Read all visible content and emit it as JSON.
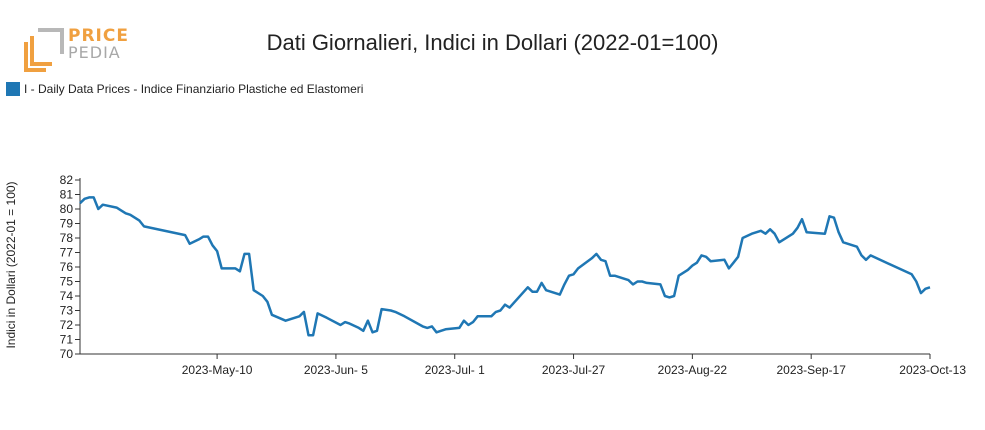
{
  "logo": {
    "word1": "PRICE",
    "word2": "PEDIA"
  },
  "chart_data": {
    "type": "line",
    "title": "Dati Giornalieri, Indici in Dollari (2022-01=100)",
    "xlabel": "",
    "ylabel": "Indici in Dollari (2022-01 = 100)",
    "ylim": [
      70,
      82
    ],
    "y_ticks": [
      70,
      71,
      72,
      73,
      74,
      75,
      76,
      77,
      78,
      79,
      80,
      81,
      82
    ],
    "x_range": [
      "2023-04-10",
      "2023-10-13"
    ],
    "x_ticks": [
      {
        "date": "2023-05-10",
        "label": "2023-May-10"
      },
      {
        "date": "2023-06-05",
        "label": "2023-Jun- 5"
      },
      {
        "date": "2023-07-01",
        "label": "2023-Jul- 1"
      },
      {
        "date": "2023-07-27",
        "label": "2023-Jul-27"
      },
      {
        "date": "2023-08-22",
        "label": "2023-Aug-22"
      },
      {
        "date": "2023-09-17",
        "label": "2023-Sep-17"
      },
      {
        "date": "2023-10-13",
        "label": "2023-Oct-13"
      }
    ],
    "legend_position": "top-left",
    "grid": false,
    "series": [
      {
        "name": "I - Daily Data Prices - Indice Finanziario Plastiche ed Elastomeri",
        "color": "#1f77b4",
        "points": [
          [
            "2023-04-10",
            80.4
          ],
          [
            "2023-04-11",
            80.7
          ],
          [
            "2023-04-12",
            80.8
          ],
          [
            "2023-04-13",
            80.8
          ],
          [
            "2023-04-14",
            80.0
          ],
          [
            "2023-04-15",
            80.3
          ],
          [
            "2023-04-18",
            80.1
          ],
          [
            "2023-04-19",
            79.9
          ],
          [
            "2023-04-20",
            79.7
          ],
          [
            "2023-04-21",
            79.6
          ],
          [
            "2023-04-23",
            79.2
          ],
          [
            "2023-04-24",
            78.8
          ],
          [
            "2023-05-03",
            78.2
          ],
          [
            "2023-05-04",
            77.6
          ],
          [
            "2023-05-06",
            77.9
          ],
          [
            "2023-05-07",
            78.1
          ],
          [
            "2023-05-08",
            78.1
          ],
          [
            "2023-05-09",
            77.5
          ],
          [
            "2023-05-10",
            77.1
          ],
          [
            "2023-05-11",
            75.9
          ],
          [
            "2023-05-14",
            75.9
          ],
          [
            "2023-05-15",
            75.7
          ],
          [
            "2023-05-16",
            76.9
          ],
          [
            "2023-05-17",
            76.9
          ],
          [
            "2023-05-18",
            74.4
          ],
          [
            "2023-05-20",
            74.0
          ],
          [
            "2023-05-21",
            73.6
          ],
          [
            "2023-05-22",
            72.7
          ],
          [
            "2023-05-25",
            72.3
          ],
          [
            "2023-05-28",
            72.6
          ],
          [
            "2023-05-29",
            72.9
          ],
          [
            "2023-05-30",
            71.3
          ],
          [
            "2023-05-31",
            71.3
          ],
          [
            "2023-06-01",
            72.8
          ],
          [
            "2023-06-03",
            72.5
          ],
          [
            "2023-06-06",
            72.0
          ],
          [
            "2023-06-07",
            72.2
          ],
          [
            "2023-06-08",
            72.1
          ],
          [
            "2023-06-10",
            71.8
          ],
          [
            "2023-06-11",
            71.6
          ],
          [
            "2023-06-12",
            72.3
          ],
          [
            "2023-06-13",
            71.5
          ],
          [
            "2023-06-14",
            71.6
          ],
          [
            "2023-06-15",
            73.1
          ],
          [
            "2023-06-17",
            73.0
          ],
          [
            "2023-06-18",
            72.9
          ],
          [
            "2023-06-20",
            72.6
          ],
          [
            "2023-06-24",
            71.9
          ],
          [
            "2023-06-25",
            71.8
          ],
          [
            "2023-06-26",
            71.9
          ],
          [
            "2023-06-27",
            71.5
          ],
          [
            "2023-06-28",
            71.6
          ],
          [
            "2023-06-29",
            71.7
          ],
          [
            "2023-07-02",
            71.8
          ],
          [
            "2023-07-03",
            72.3
          ],
          [
            "2023-07-04",
            72.0
          ],
          [
            "2023-07-05",
            72.2
          ],
          [
            "2023-07-06",
            72.6
          ],
          [
            "2023-07-09",
            72.6
          ],
          [
            "2023-07-10",
            72.9
          ],
          [
            "2023-07-11",
            73.0
          ],
          [
            "2023-07-12",
            73.4
          ],
          [
            "2023-07-13",
            73.2
          ],
          [
            "2023-07-15",
            73.9
          ],
          [
            "2023-07-17",
            74.6
          ],
          [
            "2023-07-18",
            74.3
          ],
          [
            "2023-07-19",
            74.3
          ],
          [
            "2023-07-20",
            74.9
          ],
          [
            "2023-07-21",
            74.4
          ],
          [
            "2023-07-24",
            74.1
          ],
          [
            "2023-07-25",
            74.8
          ],
          [
            "2023-07-26",
            75.4
          ],
          [
            "2023-07-27",
            75.5
          ],
          [
            "2023-07-28",
            75.9
          ],
          [
            "2023-07-31",
            76.6
          ],
          [
            "2023-08-01",
            76.9
          ],
          [
            "2023-08-02",
            76.5
          ],
          [
            "2023-08-03",
            76.4
          ],
          [
            "2023-08-04",
            75.4
          ],
          [
            "2023-08-05",
            75.4
          ],
          [
            "2023-08-08",
            75.1
          ],
          [
            "2023-08-09",
            74.8
          ],
          [
            "2023-08-10",
            75.0
          ],
          [
            "2023-08-11",
            75.0
          ],
          [
            "2023-08-12",
            74.9
          ],
          [
            "2023-08-15",
            74.8
          ],
          [
            "2023-08-16",
            74.0
          ],
          [
            "2023-08-17",
            73.9
          ],
          [
            "2023-08-18",
            74.0
          ],
          [
            "2023-08-19",
            75.4
          ],
          [
            "2023-08-21",
            75.8
          ],
          [
            "2023-08-22",
            76.1
          ],
          [
            "2023-08-23",
            76.3
          ],
          [
            "2023-08-24",
            76.8
          ],
          [
            "2023-08-25",
            76.7
          ],
          [
            "2023-08-26",
            76.4
          ],
          [
            "2023-08-29",
            76.5
          ],
          [
            "2023-08-30",
            75.9
          ],
          [
            "2023-08-31",
            76.3
          ],
          [
            "2023-09-01",
            76.7
          ],
          [
            "2023-09-02",
            78.0
          ],
          [
            "2023-09-04",
            78.3
          ],
          [
            "2023-09-06",
            78.5
          ],
          [
            "2023-09-07",
            78.3
          ],
          [
            "2023-09-08",
            78.6
          ],
          [
            "2023-09-09",
            78.3
          ],
          [
            "2023-09-10",
            77.7
          ],
          [
            "2023-09-11",
            77.9
          ],
          [
            "2023-09-13",
            78.3
          ],
          [
            "2023-09-14",
            78.7
          ],
          [
            "2023-09-15",
            79.3
          ],
          [
            "2023-09-16",
            78.4
          ],
          [
            "2023-09-20",
            78.3
          ],
          [
            "2023-09-21",
            79.5
          ],
          [
            "2023-09-22",
            79.4
          ],
          [
            "2023-09-23",
            78.4
          ],
          [
            "2023-09-24",
            77.7
          ],
          [
            "2023-09-27",
            77.4
          ],
          [
            "2023-09-28",
            76.8
          ],
          [
            "2023-09-29",
            76.5
          ],
          [
            "2023-09-30",
            76.8
          ],
          [
            "2023-10-09",
            75.5
          ],
          [
            "2023-10-10",
            75.0
          ],
          [
            "2023-10-11",
            74.2
          ],
          [
            "2023-10-12",
            74.5
          ],
          [
            "2023-10-13",
            74.6
          ]
        ]
      }
    ]
  }
}
